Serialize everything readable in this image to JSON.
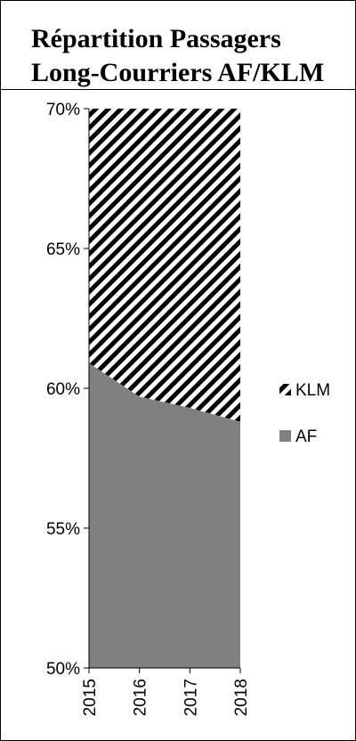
{
  "chart_data": {
    "type": "area",
    "title": "Répartition Passagers Long-Courriers AF/KLM",
    "x": [
      "2015",
      "2016",
      "2017",
      "2018"
    ],
    "series": [
      {
        "name": "AF",
        "values": [
          60.9,
          59.7,
          59.3,
          58.8
        ],
        "color": "#808080",
        "pattern": "solid"
      },
      {
        "name": "KLM",
        "values": [
          39.1,
          40.3,
          40.7,
          41.2
        ],
        "color": "#000000",
        "pattern": "diagonal-stripes"
      }
    ],
    "stacked": "percent",
    "ylim": [
      50,
      70
    ],
    "yticks": [
      "50%",
      "55%",
      "60%",
      "65%",
      "70%"
    ],
    "legend": [
      "KLM",
      "AF"
    ],
    "legend_position": "right",
    "grid": false
  }
}
